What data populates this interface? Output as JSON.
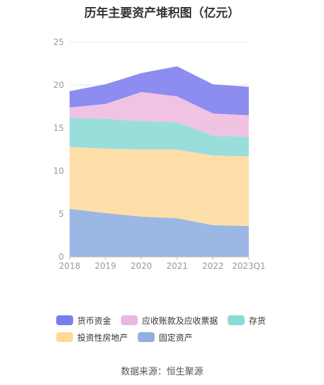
{
  "title": "历年主要资产堆积图（亿元）",
  "source": "数据来源：恒生聚源",
  "chart_data": {
    "type": "area",
    "stacked": true,
    "categories": [
      "2018",
      "2019",
      "2020",
      "2021",
      "2022",
      "2023Q1"
    ],
    "ylim": [
      0,
      25
    ],
    "yticks": [
      0,
      5,
      10,
      15,
      20,
      25
    ],
    "grid": true,
    "legend_position": "bottom",
    "series": [
      {
        "name": "固定资产",
        "color": "#8fb0e0",
        "values": [
          5.6,
          5.1,
          4.7,
          4.5,
          3.7,
          3.6
        ]
      },
      {
        "name": "投资性房地产",
        "color": "#ffdca0",
        "values": [
          7.2,
          7.5,
          7.8,
          8.0,
          8.1,
          8.1
        ]
      },
      {
        "name": "存货",
        "color": "#8fdad8",
        "values": [
          3.4,
          3.5,
          3.3,
          3.2,
          2.3,
          2.3
        ]
      },
      {
        "name": "应收账款及应收票据",
        "color": "#f0bde0",
        "values": [
          1.2,
          1.7,
          3.4,
          3.0,
          2.6,
          2.5
        ]
      },
      {
        "name": "货币资金",
        "color": "#8080f0",
        "values": [
          1.9,
          2.3,
          2.2,
          3.5,
          3.4,
          3.3
        ]
      }
    ]
  },
  "legend": {
    "rows": [
      [
        {
          "name": "货币资金",
          "color": "#7b7bf0"
        },
        {
          "name": "应收账款及应收票据",
          "color": "#ebb8dd"
        },
        {
          "name": "存货",
          "color": "#8cd9d8"
        }
      ],
      [
        {
          "name": "投资性房地产",
          "color": "#ffd99a"
        },
        {
          "name": "固定资产",
          "color": "#8fb0e0"
        }
      ]
    ]
  }
}
